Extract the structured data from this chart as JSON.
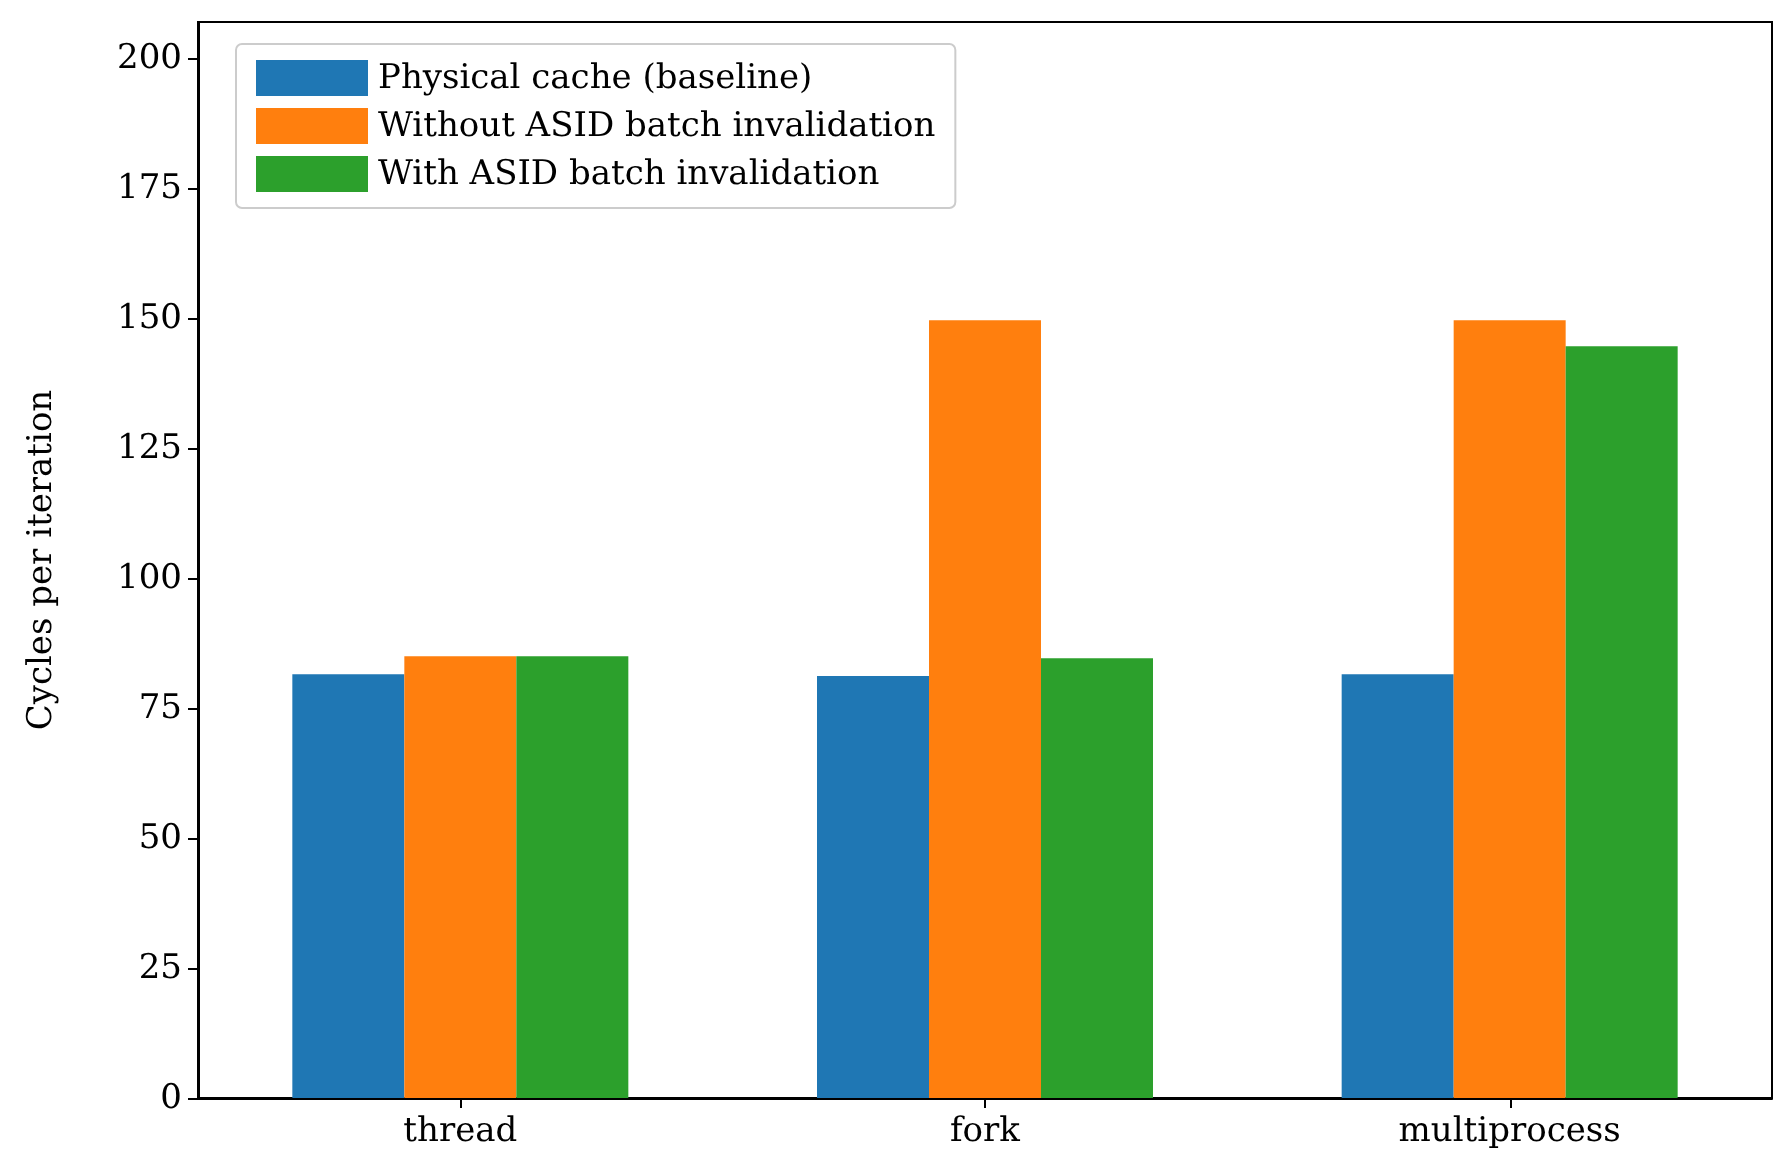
{
  "chart_data": {
    "type": "bar",
    "ylabel": "Cycles per iteration",
    "categories": [
      "thread",
      "fork",
      "multiprocess"
    ],
    "series": [
      {
        "name": "Physical cache (baseline)",
        "color": "#1f77b4",
        "values": [
          81.5,
          81.2,
          81.5
        ]
      },
      {
        "name": "Without ASID batch invalidation",
        "color": "#ff7f0e",
        "values": [
          85,
          149.6,
          149.6
        ]
      },
      {
        "name": "With ASID batch invalidation",
        "color": "#2ca02c",
        "values": [
          85,
          84.6,
          144.6
        ]
      }
    ],
    "ylim": [
      0,
      207
    ],
    "yticks": [
      0,
      25,
      50,
      75,
      100,
      125,
      150,
      175,
      200
    ],
    "grid": false,
    "legend": "top left"
  }
}
